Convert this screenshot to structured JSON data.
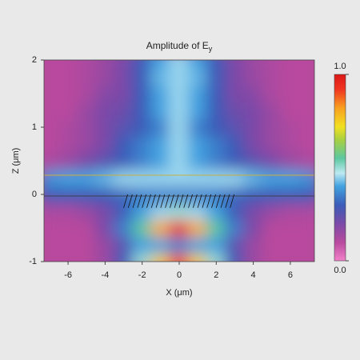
{
  "chart_data": {
    "type": "heatmap",
    "title": {
      "text": "Amplitude of E",
      "subscript": "y"
    },
    "x_label": "X (μm)",
    "y_label": "Z (μm)",
    "xlim": [
      -7.3,
      7.3
    ],
    "ylim": [
      -1,
      2
    ],
    "xticks": [
      -6,
      -4,
      -2,
      0,
      2,
      4,
      6
    ],
    "yticks": [
      -1,
      0,
      1,
      2
    ],
    "x": [
      -7,
      -6,
      -5,
      -4,
      -3,
      -2,
      -1,
      0,
      1,
      2,
      3,
      4,
      5,
      6,
      7
    ],
    "y": [
      -1,
      -0.75,
      -0.5,
      -0.25,
      0,
      0.25,
      0.5,
      0.75,
      1,
      1.25,
      1.5,
      1.75,
      2
    ],
    "values": [
      [
        0.1,
        0.1,
        0.1,
        0.15,
        0.3,
        0.5,
        0.75,
        0.9,
        0.75,
        0.5,
        0.3,
        0.15,
        0.1,
        0.1,
        0.1
      ],
      [
        0.1,
        0.1,
        0.1,
        0.15,
        0.25,
        0.4,
        0.4,
        0.35,
        0.4,
        0.4,
        0.25,
        0.15,
        0.1,
        0.1,
        0.1
      ],
      [
        0.1,
        0.1,
        0.1,
        0.2,
        0.35,
        0.55,
        0.8,
        0.95,
        0.8,
        0.55,
        0.35,
        0.2,
        0.1,
        0.1,
        0.1
      ],
      [
        0.12,
        0.12,
        0.15,
        0.2,
        0.3,
        0.4,
        0.45,
        0.5,
        0.45,
        0.4,
        0.3,
        0.2,
        0.15,
        0.12,
        0.12
      ],
      [
        0.3,
        0.3,
        0.3,
        0.3,
        0.32,
        0.35,
        0.35,
        0.35,
        0.35,
        0.35,
        0.32,
        0.3,
        0.3,
        0.3,
        0.3
      ],
      [
        0.38,
        0.4,
        0.4,
        0.42,
        0.45,
        0.45,
        0.45,
        0.45,
        0.45,
        0.45,
        0.45,
        0.42,
        0.4,
        0.4,
        0.38
      ],
      [
        0.12,
        0.15,
        0.2,
        0.25,
        0.3,
        0.35,
        0.4,
        0.45,
        0.4,
        0.35,
        0.3,
        0.25,
        0.2,
        0.15,
        0.12
      ],
      [
        0.1,
        0.12,
        0.15,
        0.2,
        0.3,
        0.35,
        0.4,
        0.45,
        0.4,
        0.35,
        0.3,
        0.2,
        0.15,
        0.12,
        0.1
      ],
      [
        0.1,
        0.12,
        0.15,
        0.2,
        0.25,
        0.3,
        0.35,
        0.45,
        0.35,
        0.3,
        0.25,
        0.2,
        0.15,
        0.12,
        0.1
      ],
      [
        0.1,
        0.1,
        0.15,
        0.2,
        0.22,
        0.3,
        0.4,
        0.45,
        0.4,
        0.3,
        0.22,
        0.2,
        0.15,
        0.1,
        0.1
      ],
      [
        0.1,
        0.1,
        0.12,
        0.18,
        0.2,
        0.3,
        0.4,
        0.45,
        0.4,
        0.3,
        0.2,
        0.18,
        0.12,
        0.1,
        0.1
      ],
      [
        0.1,
        0.1,
        0.12,
        0.15,
        0.2,
        0.3,
        0.42,
        0.45,
        0.42,
        0.3,
        0.2,
        0.15,
        0.12,
        0.1,
        0.1
      ],
      [
        0.1,
        0.1,
        0.12,
        0.15,
        0.2,
        0.3,
        0.4,
        0.45,
        0.4,
        0.3,
        0.2,
        0.15,
        0.12,
        0.1,
        0.1
      ]
    ],
    "clim": [
      0,
      1
    ],
    "cticks": [
      {
        "value": 0,
        "label": "0.0"
      },
      {
        "value": 1,
        "label": "1.0"
      }
    ]
  }
}
